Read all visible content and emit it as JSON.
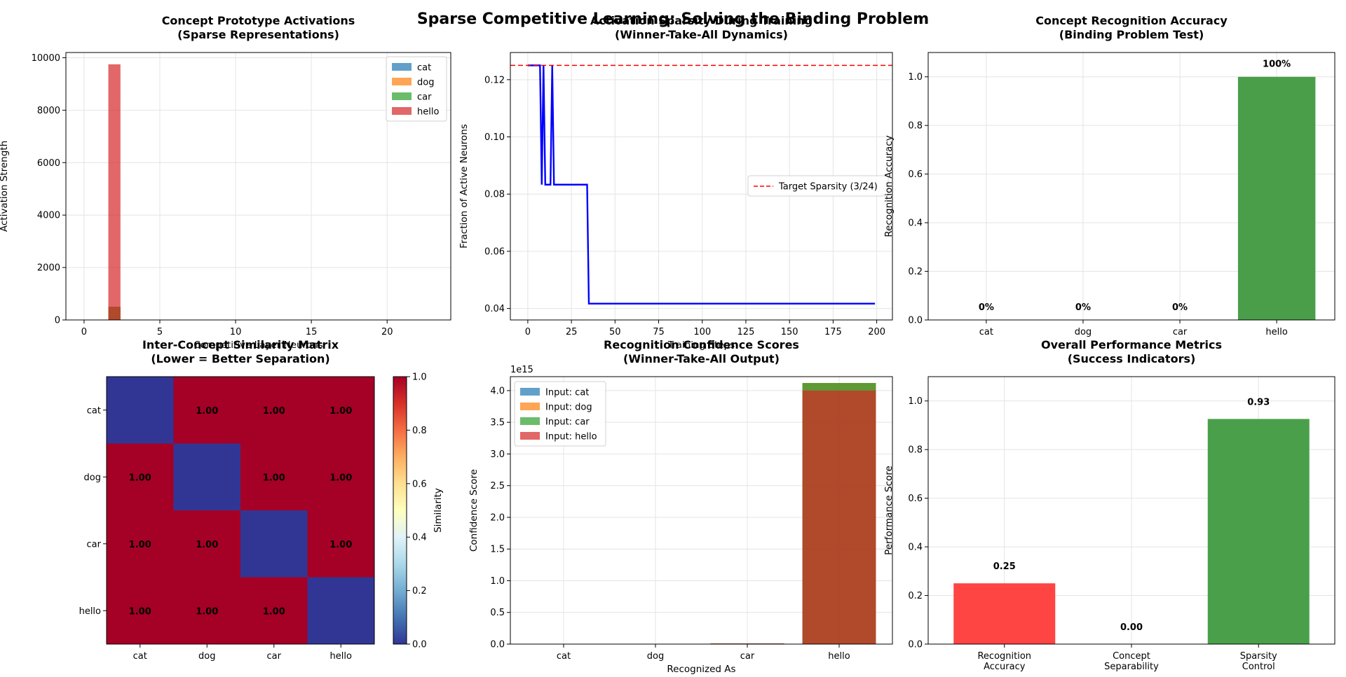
{
  "suptitle": "Sparse Competitive Learning: Solving the Binding Problem",
  "chart_data": [
    {
      "id": "prototypes",
      "type": "bar",
      "title": [
        "Concept Prototype Activations",
        "(Sparse Representations)"
      ],
      "xlabel": "Competitive Layer Neurons",
      "ylabel": "Activation Strength",
      "xlim": [
        -1.2,
        24.2
      ],
      "ylim": [
        0,
        10200
      ],
      "xticks": [
        0,
        5,
        10,
        15,
        20
      ],
      "yticks": [
        0,
        2000,
        4000,
        6000,
        8000,
        10000
      ],
      "grid": true,
      "legend": "top-right",
      "bar_width": 0.8,
      "series": [
        {
          "name": "cat",
          "color": "#1f77b4",
          "x": [
            2
          ],
          "values": [
            500
          ]
        },
        {
          "name": "dog",
          "color": "#ff7f0e",
          "x": [
            2
          ],
          "values": [
            500
          ]
        },
        {
          "name": "car",
          "color": "#2ca02c",
          "x": [
            2
          ],
          "values": [
            500
          ]
        },
        {
          "name": "hello",
          "color": "#d62728",
          "x": [
            2
          ],
          "values": [
            9750
          ]
        }
      ]
    },
    {
      "id": "sparsity",
      "type": "line",
      "title": [
        "Activation Sparsity During Training",
        "(Winner-Take-All Dynamics)"
      ],
      "xlabel": "Training Steps",
      "ylabel": "Fraction of Active Neurons",
      "xlim": [
        -10,
        209
      ],
      "ylim": [
        0.036,
        0.1295
      ],
      "xticks": [
        0,
        25,
        50,
        75,
        100,
        125,
        150,
        175,
        200
      ],
      "yticks": [
        0.04,
        0.06,
        0.08,
        0.1,
        0.12
      ],
      "ytick_labels": [
        "0.04",
        "0.06",
        "0.08",
        "0.10",
        "0.12"
      ],
      "grid": true,
      "legend": "center-right",
      "series": [
        {
          "name": "",
          "color": "#0000ff",
          "x": [
            0,
            7,
            8,
            9,
            10,
            13,
            14,
            15,
            34,
            35,
            199
          ],
          "y": [
            0.125,
            0.125,
            0.0833,
            0.125,
            0.0833,
            0.0833,
            0.125,
            0.0833,
            0.0833,
            0.0417,
            0.0417
          ]
        }
      ],
      "hline": {
        "y": 0.125,
        "color": "#ff0000",
        "name": "Target Sparsity (3/24)"
      }
    },
    {
      "id": "accuracy",
      "type": "bar",
      "title": [
        "Concept Recognition Accuracy",
        "(Binding Problem Test)"
      ],
      "ylabel": "Recognition Accuracy",
      "categories": [
        "cat",
        "dog",
        "car",
        "hello"
      ],
      "values": [
        0,
        0,
        0,
        1.0
      ],
      "labels": [
        "0%",
        "0%",
        "0%",
        "100%"
      ],
      "colors": [
        "#4a9e4a",
        "#4a9e4a",
        "#4a9e4a",
        "#4a9e4a"
      ],
      "ylim": [
        0,
        1.1
      ],
      "yticks": [
        0.0,
        0.2,
        0.4,
        0.6,
        0.8,
        1.0
      ],
      "ytick_labels": [
        "0.0",
        "0.2",
        "0.4",
        "0.6",
        "0.8",
        "1.0"
      ],
      "grid": true
    },
    {
      "id": "similarity",
      "type": "heatmap",
      "title": [
        "Inter-Concept Similarity Matrix",
        "(Lower = Better Separation)"
      ],
      "rows": [
        "cat",
        "dog",
        "car",
        "hello"
      ],
      "cols": [
        "cat",
        "dog",
        "car",
        "hello"
      ],
      "values": [
        [
          0,
          1,
          1,
          1
        ],
        [
          1,
          0,
          1,
          1
        ],
        [
          1,
          1,
          0,
          1
        ],
        [
          1,
          1,
          1,
          0
        ]
      ],
      "cell_labels": [
        [
          "",
          "1.00",
          "1.00",
          "1.00"
        ],
        [
          "1.00",
          "",
          "1.00",
          "1.00"
        ],
        [
          "1.00",
          "1.00",
          "",
          "1.00"
        ],
        [
          "1.00",
          "1.00",
          "1.00",
          ""
        ]
      ],
      "colorbar_label": "Similarity",
      "colorbar_ticks": [
        "0.0",
        "0.2",
        "0.4",
        "0.6",
        "0.8",
        "1.0"
      ],
      "colormap": "RdYlBu_r",
      "vmin": 0,
      "vmax": 1
    },
    {
      "id": "confidence",
      "type": "bar",
      "title": [
        "Recognition Confidence Scores",
        "(Winner-Take-All Output)"
      ],
      "xlabel": "Recognized As",
      "ylabel": "Confidence Score",
      "categories": [
        "cat",
        "dog",
        "car",
        "hello"
      ],
      "offset_label": "1e15",
      "ylim": [
        0,
        4.22
      ],
      "yticks": [
        0.0,
        0.5,
        1.0,
        1.5,
        2.0,
        2.5,
        3.0,
        3.5,
        4.0
      ],
      "ytick_labels": [
        "0.0",
        "0.5",
        "1.0",
        "1.5",
        "2.0",
        "2.5",
        "3.0",
        "3.5",
        "4.0"
      ],
      "grid": true,
      "legend": "top-left",
      "series": [
        {
          "name": "Input: cat",
          "color": "#1f77b4",
          "values": [
            0,
            0,
            0.01,
            4.12
          ]
        },
        {
          "name": "Input: dog",
          "color": "#ff7f0e",
          "values": [
            0,
            0,
            0.01,
            4.12
          ]
        },
        {
          "name": "Input: car",
          "color": "#2ca02c",
          "values": [
            0,
            0,
            0.01,
            4.12
          ]
        },
        {
          "name": "Input: hello",
          "color": "#d62728",
          "values": [
            0,
            0,
            0.01,
            4.0
          ]
        }
      ]
    },
    {
      "id": "performance",
      "type": "bar",
      "title": [
        "Overall Performance Metrics",
        "(Success Indicators)"
      ],
      "ylabel": "Performance Score",
      "categories": [
        [
          "Recognition",
          "Accuracy"
        ],
        [
          "Concept",
          "Separability"
        ],
        [
          "Sparsity",
          "Control"
        ]
      ],
      "values": [
        0.25,
        0.0,
        0.926
      ],
      "labels": [
        "0.25",
        "0.00",
        "0.93"
      ],
      "colors": [
        "#ff4444",
        "#4444ff",
        "#4aa04a"
      ],
      "ylim": [
        0,
        1.1
      ],
      "yticks": [
        0.0,
        0.2,
        0.4,
        0.6,
        0.8,
        1.0
      ],
      "ytick_labels": [
        "0.0",
        "0.2",
        "0.4",
        "0.6",
        "0.8",
        "1.0"
      ],
      "grid": true
    }
  ]
}
